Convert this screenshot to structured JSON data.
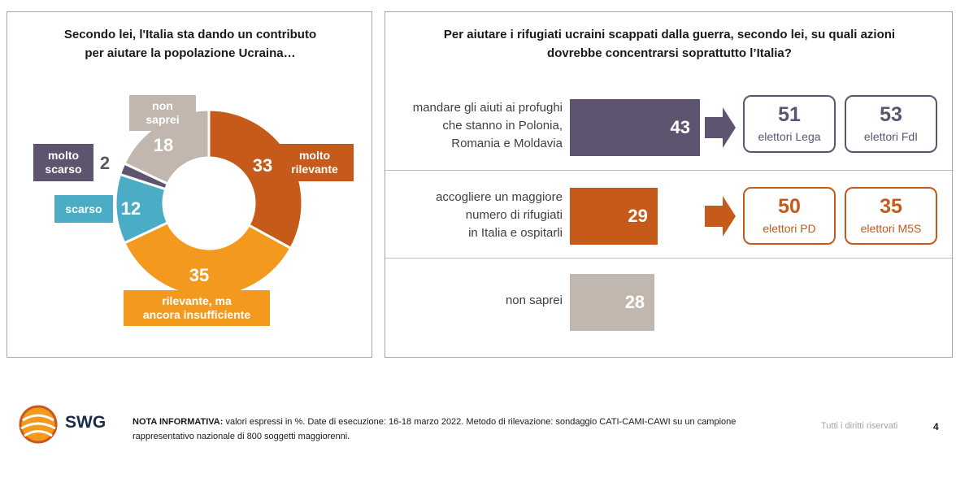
{
  "chart_data": [
    {
      "type": "donut",
      "title": "Secondo lei, l'Italia sta dando un contributo per aiutare la popolazione Ucraina…",
      "title_lines": [
        "Secondo lei, l'Italia sta dando un contributo",
        "per aiutare la popolazione Ucraina…"
      ],
      "categories": [
        "molto rilevante",
        "rilevante, ma ancora insufficiente",
        "scarso",
        "molto scarso",
        "non saprei"
      ],
      "values": [
        33,
        35,
        12,
        2,
        18
      ],
      "display_values": [
        "33",
        "35",
        "12",
        "2",
        "18"
      ],
      "label_lines": [
        [
          "molto",
          "rilevante"
        ],
        [
          "rilevante, ma",
          "ancora insufficiente"
        ],
        [
          "scarso"
        ],
        [
          "molto",
          "scarso"
        ],
        [
          "non",
          "saprei"
        ]
      ],
      "colors": [
        "#c55a1b",
        "#f39a1e",
        "#4bacc6",
        "#5f5470",
        "#c2b7ae"
      ]
    },
    {
      "type": "bar",
      "title": "Per aiutare i rifugiati ucraini scappati dalla guerra, secondo lei, su quali azioni dovrebbe concentrarsi soprattutto l’Italia?",
      "title_lines": [
        "Per aiutare i rifugiati ucraini scappati dalla guerra, secondo lei, su quali azioni",
        "dovrebbe concentrarsi soprattutto l’Italia?"
      ],
      "categories": [
        "mandare gli aiuti ai profughi che stanno in Polonia, Romania e Moldavia",
        "accogliere un maggiore numero di rifugiati in Italia e ospitarli",
        "non saprei"
      ],
      "values": [
        43,
        29,
        28
      ],
      "display_values": [
        "43",
        "29",
        "28"
      ],
      "category_lines": [
        [
          "mandare gli aiuti ai profughi",
          "che stanno in Polonia,",
          "Romania e Moldavia"
        ],
        [
          "accogliere un maggiore",
          "numero di rifugiati",
          "in Italia e ospitarli"
        ],
        [
          "non saprei"
        ]
      ],
      "colors": [
        "#5f5470",
        "#c55a1b",
        "#c2b7ae"
      ],
      "annotations": [
        {
          "row": 0,
          "boxes": [
            {
              "value": "51",
              "label": "elettori Lega"
            },
            {
              "value": "53",
              "label": "elettori FdI"
            }
          ]
        },
        {
          "row": 1,
          "boxes": [
            {
              "value": "50",
              "label": "elettori PD"
            },
            {
              "value": "35",
              "label": "elettori M5S"
            }
          ]
        }
      ]
    }
  ],
  "footer": {
    "logo": "SWG",
    "note_label": "NOTA INFORMATIVA:",
    "note_text": " valori espressi in %. Date di esecuzione: 16-18 marzo 2022. Metodo di rilevazione: sondaggio CATI-CAMI-CAWI su un campione rappresentativo nazionale di 800 soggetti maggiorenni.",
    "rights": "Tutti i diritti riservati",
    "page": "4"
  }
}
